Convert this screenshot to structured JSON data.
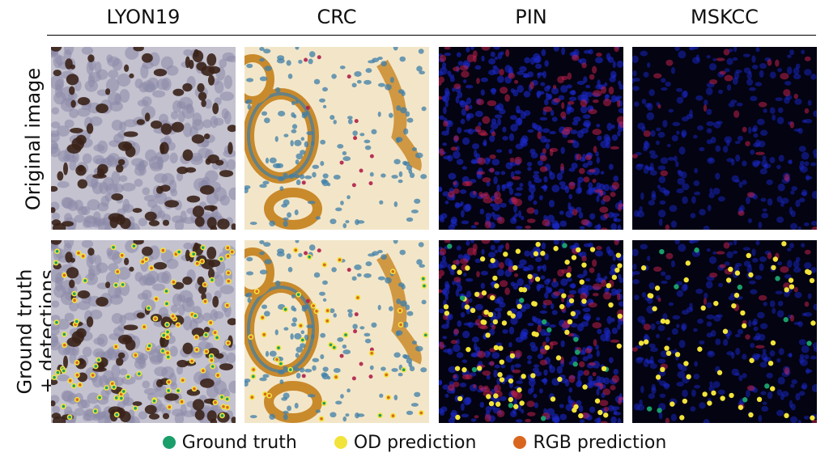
{
  "figure": {
    "columns": [
      {
        "title": "LYON19",
        "key": "lyon"
      },
      {
        "title": "CRC",
        "key": "crc"
      },
      {
        "title": "PIN",
        "key": "pin"
      },
      {
        "title": "MSKCC",
        "key": "mskcc"
      }
    ],
    "rows": [
      {
        "label": "Original image"
      },
      {
        "label_line1": "Ground truth",
        "label_line2": "+ detections"
      }
    ],
    "legend": [
      {
        "label": "Ground truth",
        "color": "#1a9e6a"
      },
      {
        "label": "OD prediction",
        "color": "#f2e33a"
      },
      {
        "label": "RGB prediction",
        "color": "#d9661f"
      }
    ],
    "colors": {
      "lyon_background": "#c4c2cf",
      "lyon_stain": "#3a2218",
      "crc_background": "#f3e6c8",
      "crc_nuclei": "#3d7ea8",
      "crc_gland": "#c98a2c",
      "fluor_background": "#030312",
      "fluor_blue": "#1a28c8",
      "fluor_red": "#c0204a"
    }
  }
}
